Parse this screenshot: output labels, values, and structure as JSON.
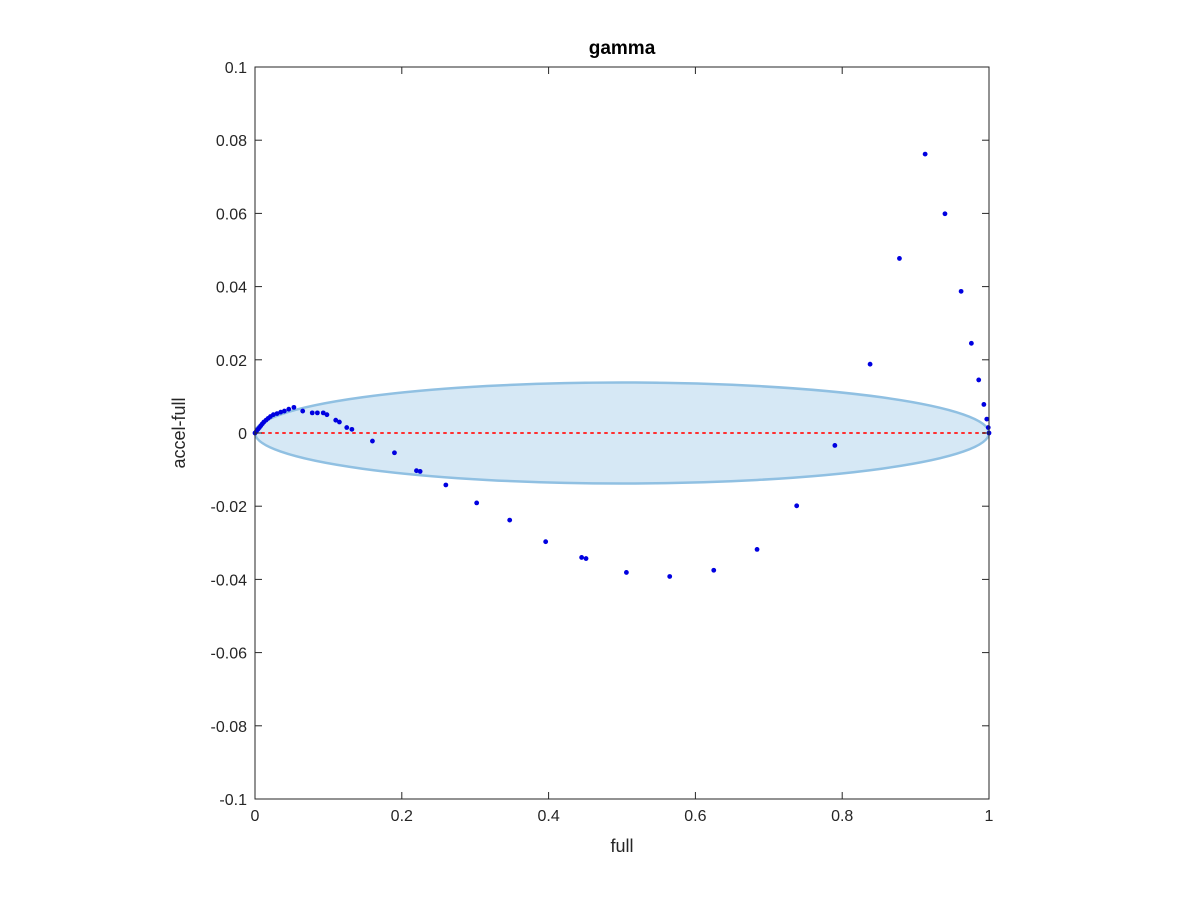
{
  "chart_data": {
    "type": "scatter",
    "title": "gamma",
    "xlabel": "full",
    "ylabel": "accel-full",
    "xlim": [
      0,
      1
    ],
    "ylim": [
      -0.1,
      0.1
    ],
    "xticks": [
      0,
      0.2,
      0.4,
      0.6,
      0.8,
      1
    ],
    "xtick_labels": [
      "0",
      "0.2",
      "0.4",
      "0.6",
      "0.8",
      "1"
    ],
    "yticks": [
      -0.1,
      -0.08,
      -0.06,
      -0.04,
      -0.02,
      0,
      0.02,
      0.04,
      0.06,
      0.08,
      0.1
    ],
    "ytick_labels": [
      "-0.1",
      "-0.08",
      "-0.06",
      "-0.04",
      "-0.02",
      "0",
      "0.02",
      "0.04",
      "0.06",
      "0.08",
      "0.1"
    ],
    "grid": false,
    "colors": {
      "points": "#0000e0",
      "ellipse_fill": "#d6e8f5",
      "ellipse_stroke": "#90c0e2",
      "reference_line": "#ff3030",
      "axes": "#262626"
    },
    "reference_line": {
      "y": 0,
      "x": [
        0,
        1
      ],
      "style": "dotted"
    },
    "ellipse": {
      "center_x": 0.5,
      "center_y": 0,
      "radius_x": 0.5,
      "radius_y": 0.0138
    },
    "points": [
      {
        "x": 0.0,
        "y": 0.0
      },
      {
        "x": 0.002,
        "y": 0.0005
      },
      {
        "x": 0.004,
        "y": 0.001
      },
      {
        "x": 0.006,
        "y": 0.0015
      },
      {
        "x": 0.008,
        "y": 0.002
      },
      {
        "x": 0.01,
        "y": 0.0025
      },
      {
        "x": 0.012,
        "y": 0.003
      },
      {
        "x": 0.015,
        "y": 0.0035
      },
      {
        "x": 0.018,
        "y": 0.004
      },
      {
        "x": 0.021,
        "y": 0.0045
      },
      {
        "x": 0.025,
        "y": 0.005
      },
      {
        "x": 0.03,
        "y": 0.0053
      },
      {
        "x": 0.035,
        "y": 0.0057
      },
      {
        "x": 0.04,
        "y": 0.006
      },
      {
        "x": 0.046,
        "y": 0.0065
      },
      {
        "x": 0.053,
        "y": 0.007
      },
      {
        "x": 0.065,
        "y": 0.006
      },
      {
        "x": 0.078,
        "y": 0.0055
      },
      {
        "x": 0.085,
        "y": 0.0055
      },
      {
        "x": 0.093,
        "y": 0.0055
      },
      {
        "x": 0.098,
        "y": 0.005
      },
      {
        "x": 0.11,
        "y": 0.0035
      },
      {
        "x": 0.115,
        "y": 0.003
      },
      {
        "x": 0.125,
        "y": 0.0015
      },
      {
        "x": 0.132,
        "y": 0.001
      },
      {
        "x": 0.16,
        "y": -0.0022
      },
      {
        "x": 0.19,
        "y": -0.0054
      },
      {
        "x": 0.22,
        "y": -0.0103
      },
      {
        "x": 0.225,
        "y": -0.0105
      },
      {
        "x": 0.26,
        "y": -0.0142
      },
      {
        "x": 0.302,
        "y": -0.0191
      },
      {
        "x": 0.347,
        "y": -0.0238
      },
      {
        "x": 0.396,
        "y": -0.0297
      },
      {
        "x": 0.445,
        "y": -0.034
      },
      {
        "x": 0.451,
        "y": -0.0343
      },
      {
        "x": 0.506,
        "y": -0.0381
      },
      {
        "x": 0.565,
        "y": -0.0392
      },
      {
        "x": 0.625,
        "y": -0.0375
      },
      {
        "x": 0.684,
        "y": -0.0318
      },
      {
        "x": 0.738,
        "y": -0.0199
      },
      {
        "x": 0.79,
        "y": -0.0034
      },
      {
        "x": 0.838,
        "y": 0.0188
      },
      {
        "x": 0.878,
        "y": 0.0477
      },
      {
        "x": 0.913,
        "y": 0.0762
      },
      {
        "x": 0.94,
        "y": 0.0599
      },
      {
        "x": 0.962,
        "y": 0.0387
      },
      {
        "x": 0.976,
        "y": 0.0245
      },
      {
        "x": 0.986,
        "y": 0.0145
      },
      {
        "x": 0.993,
        "y": 0.0078
      },
      {
        "x": 0.997,
        "y": 0.0038
      },
      {
        "x": 0.999,
        "y": 0.0015
      },
      {
        "x": 1.0,
        "y": 0.0
      }
    ]
  }
}
